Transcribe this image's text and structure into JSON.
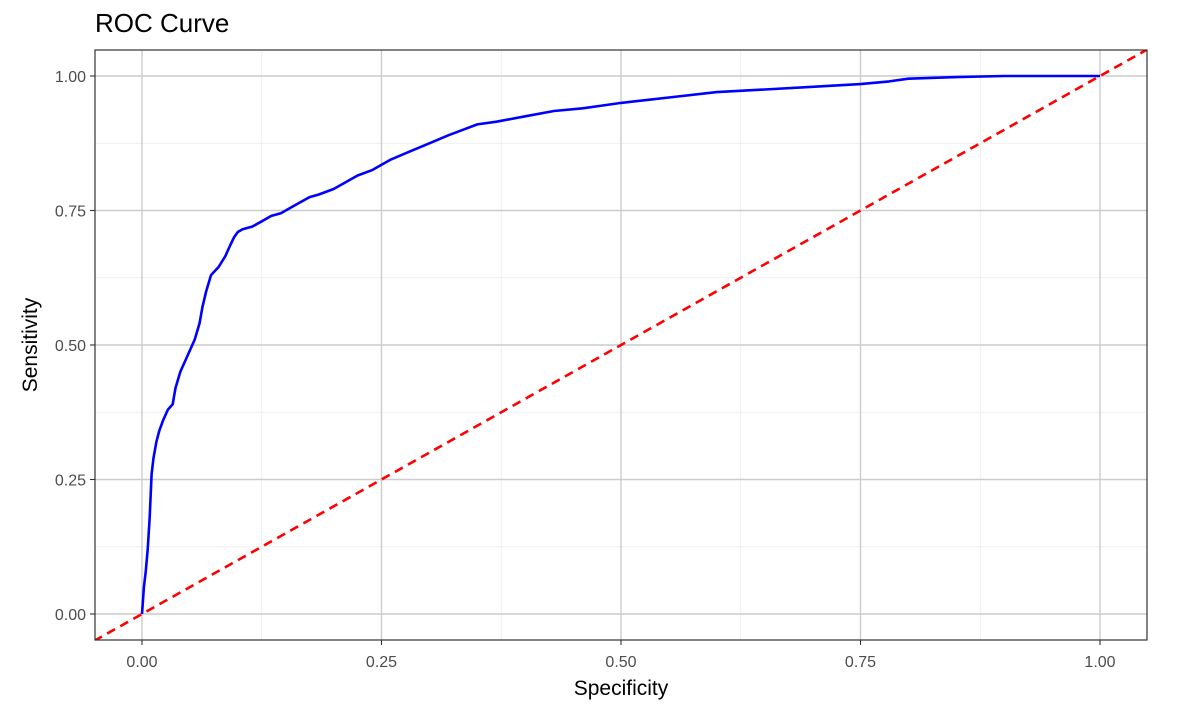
{
  "chart_data": {
    "type": "line",
    "title": "ROC Curve",
    "xlabel": "Specificity",
    "ylabel": "Sensitivity",
    "xlim": [
      0,
      1
    ],
    "ylim": [
      0,
      1
    ],
    "x_ticks": [
      "0.00",
      "0.25",
      "0.50",
      "0.75",
      "1.00"
    ],
    "y_ticks": [
      "0.00",
      "0.25",
      "0.50",
      "0.75",
      "1.00"
    ],
    "x_tick_values": [
      0,
      0.25,
      0.5,
      0.75,
      1
    ],
    "y_tick_values": [
      0,
      0.25,
      0.5,
      0.75,
      1
    ],
    "grid": true,
    "legend": "none",
    "series": [
      {
        "color": "#0000ff",
        "style": "solid",
        "x": [
          0,
          0.002,
          0.004,
          0.006,
          0.008,
          0.01,
          0.012,
          0.015,
          0.018,
          0.022,
          0.027,
          0.032,
          0.035,
          0.04,
          0.045,
          0.05,
          0.055,
          0.06,
          0.063,
          0.067,
          0.072,
          0.08,
          0.087,
          0.092,
          0.096,
          0.1,
          0.105,
          0.115,
          0.125,
          0.135,
          0.145,
          0.155,
          0.165,
          0.175,
          0.185,
          0.2,
          0.21,
          0.225,
          0.24,
          0.25,
          0.26,
          0.28,
          0.3,
          0.32,
          0.335,
          0.35,
          0.37,
          0.4,
          0.43,
          0.46,
          0.48,
          0.5,
          0.525,
          0.55,
          0.6,
          0.65,
          0.7,
          0.75,
          0.78,
          0.8,
          0.85,
          0.9,
          0.95,
          1.0
        ],
        "y": [
          0,
          0.05,
          0.08,
          0.12,
          0.18,
          0.26,
          0.29,
          0.32,
          0.34,
          0.36,
          0.38,
          0.39,
          0.42,
          0.45,
          0.47,
          0.49,
          0.51,
          0.54,
          0.57,
          0.6,
          0.63,
          0.645,
          0.665,
          0.685,
          0.7,
          0.71,
          0.715,
          0.72,
          0.73,
          0.74,
          0.745,
          0.755,
          0.765,
          0.775,
          0.78,
          0.79,
          0.8,
          0.815,
          0.825,
          0.835,
          0.845,
          0.86,
          0.875,
          0.89,
          0.9,
          0.91,
          0.915,
          0.925,
          0.935,
          0.94,
          0.945,
          0.95,
          0.955,
          0.96,
          0.97,
          0.975,
          0.98,
          0.985,
          0.99,
          0.995,
          0.998,
          1.0,
          1.0,
          1.0
        ]
      },
      {
        "color": "#ff0000",
        "style": "dashed",
        "x": [
          -0.05,
          1.05
        ],
        "y": [
          -0.05,
          1.05
        ]
      }
    ]
  }
}
